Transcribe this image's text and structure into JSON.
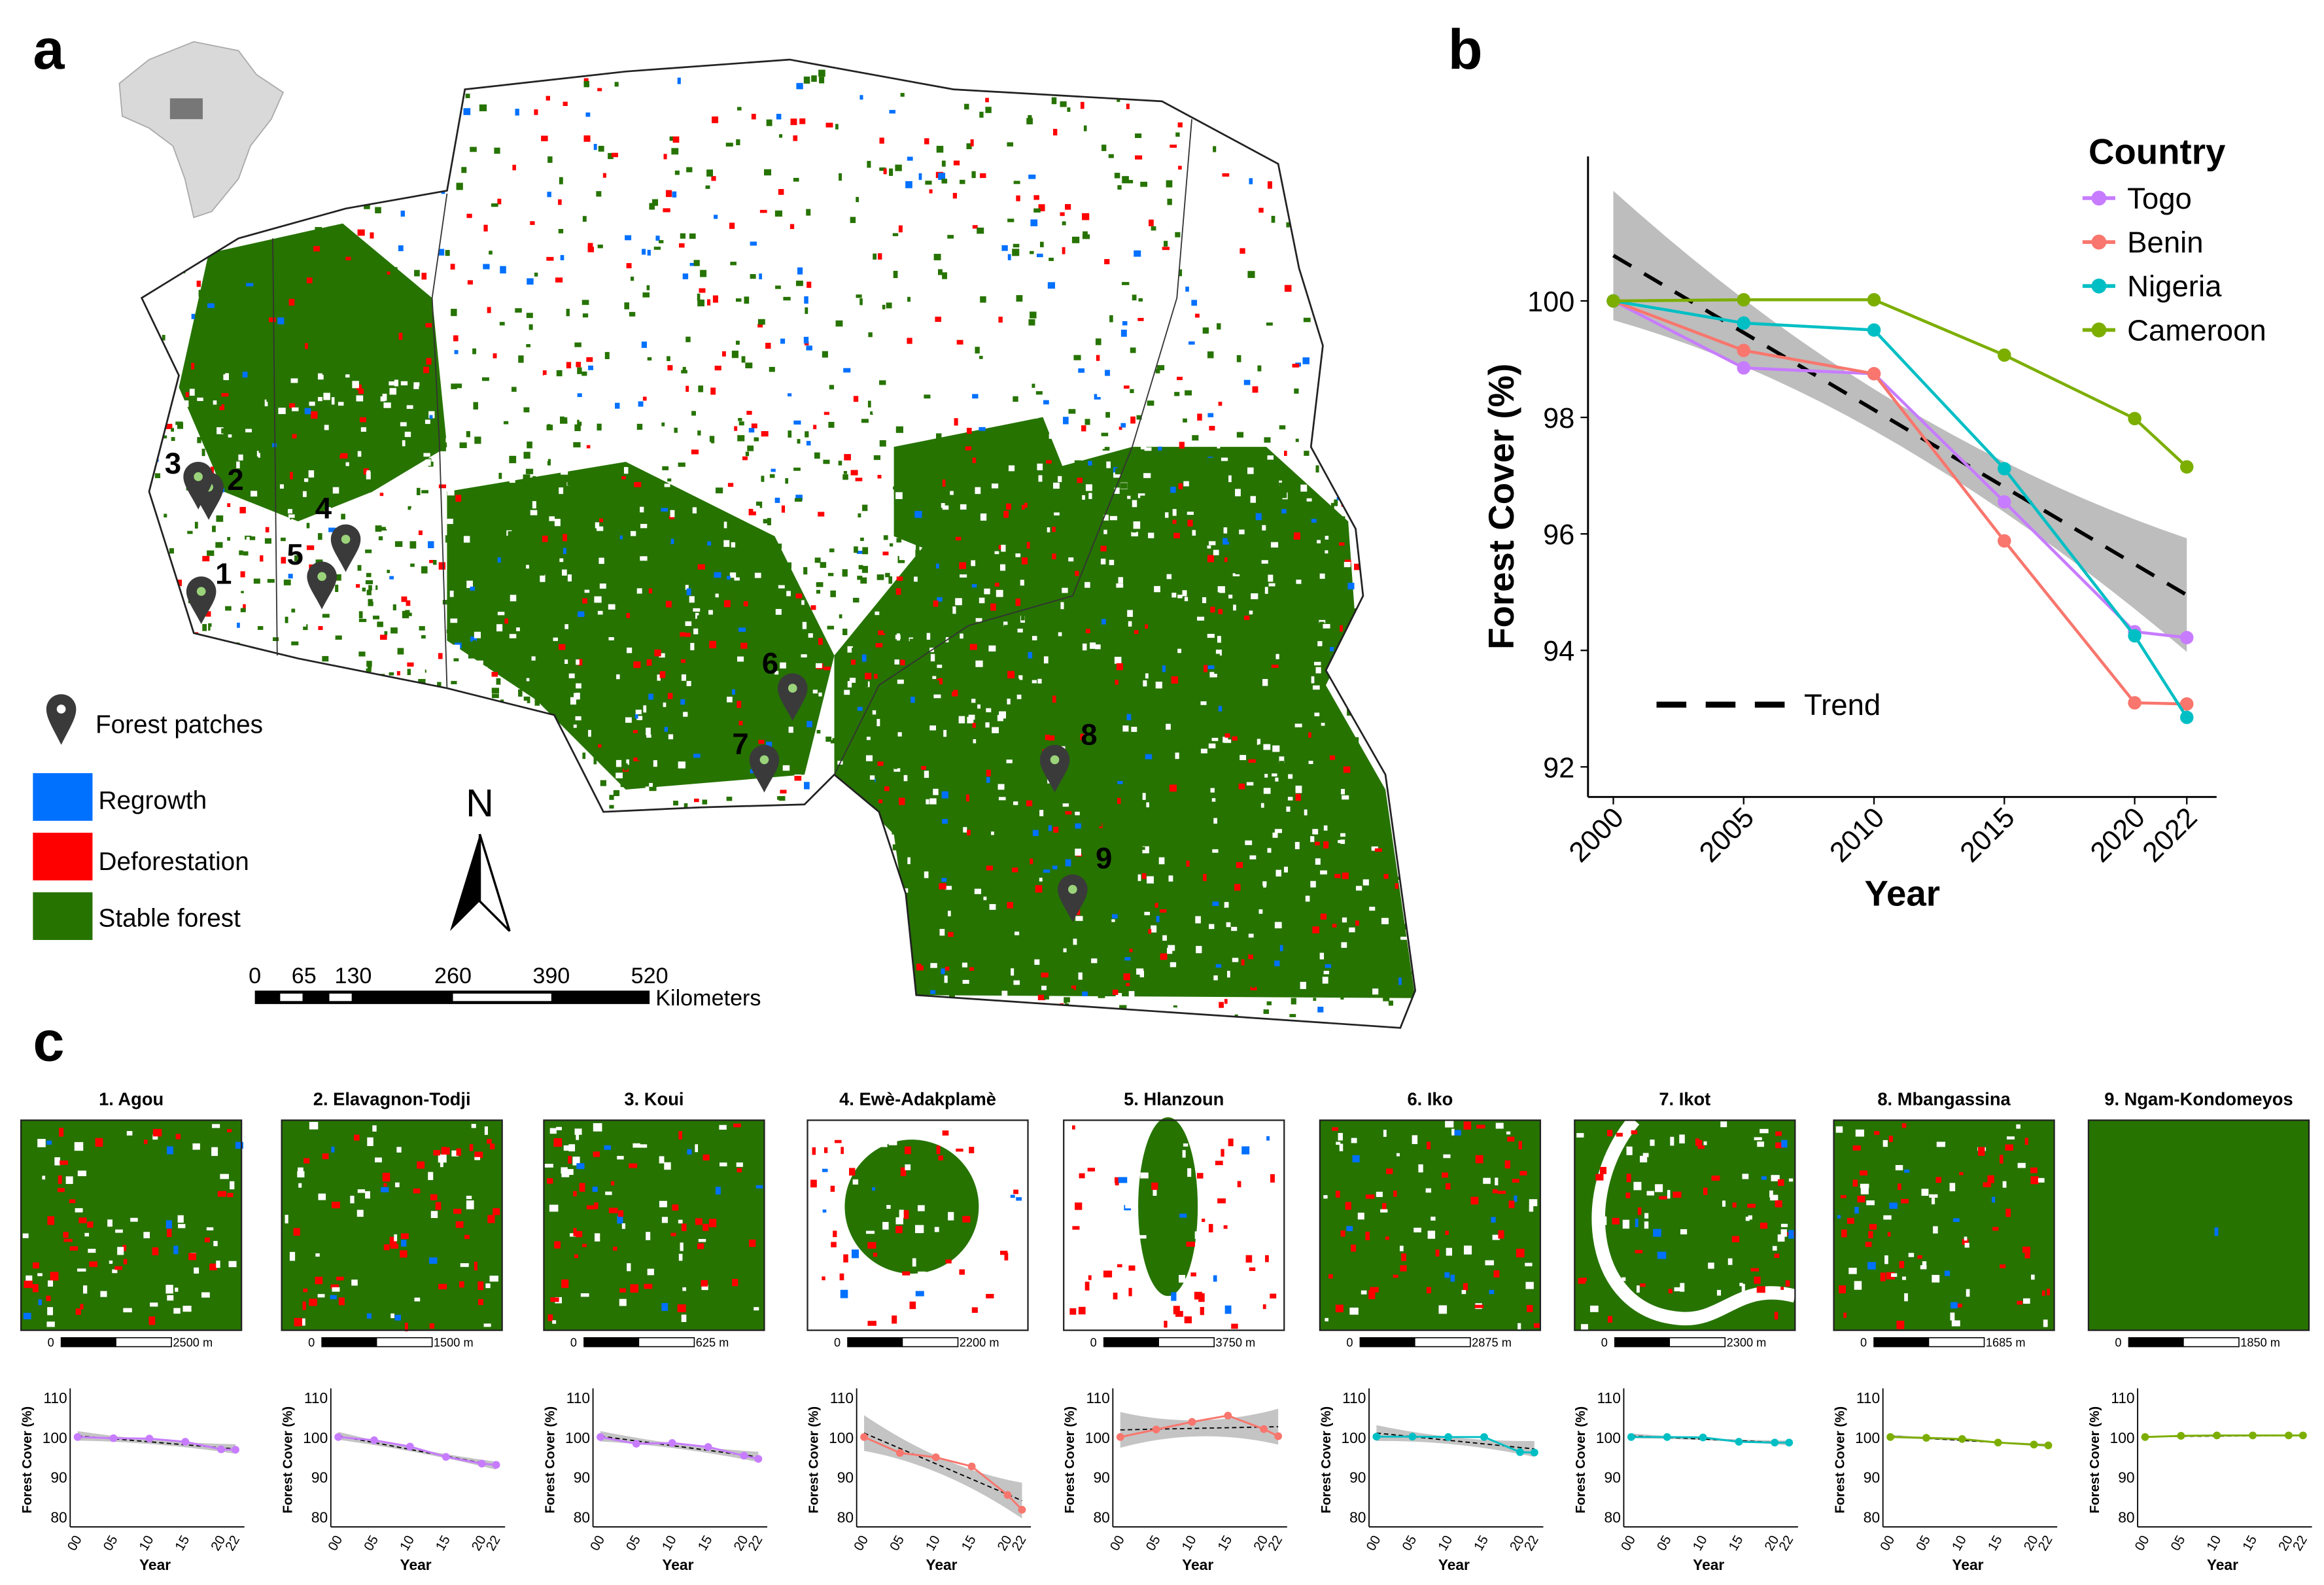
{
  "panel_labels": {
    "a": "a",
    "b": "b",
    "c": "c"
  },
  "map": {
    "legend": {
      "marker": "Forest patches",
      "regrowth": "Regrowth",
      "deforestation": "Deforestation",
      "stable": "Stable forest"
    },
    "colors": {
      "regrowth": "#0070FF",
      "deforestation": "#FF0000",
      "stable": "#267300",
      "marker": "#3a3a3a"
    },
    "north": "N",
    "scale_ticks": [
      "0",
      "65",
      "130",
      "260",
      "390",
      "520"
    ],
    "scale_unit": "Kilometers",
    "markers": [
      "1",
      "2",
      "3",
      "4",
      "5",
      "6",
      "7",
      "8",
      "9"
    ]
  },
  "chart_data": [
    {
      "type": "line",
      "panel": "b",
      "title": "",
      "xlabel": "Year",
      "ylabel": "Forest Cover (%)",
      "x": [
        2000,
        2005,
        2010,
        2015,
        2020,
        2022
      ],
      "x_tick_labels": [
        "2000",
        "2005",
        "2010",
        "2015",
        "2020",
        "2022"
      ],
      "y_ticks": [
        92,
        94,
        96,
        98,
        100
      ],
      "ylim": [
        91.5,
        102.5
      ],
      "legend_title": "Country",
      "legend_position": "top-right",
      "series": [
        {
          "name": "Togo",
          "color": "#C77CFF",
          "values": [
            100,
            98.85,
            98.75,
            96.55,
            94.32,
            94.22
          ]
        },
        {
          "name": "Benin",
          "color": "#F8766D",
          "values": [
            100,
            99.15,
            98.75,
            95.88,
            93.1,
            93.08
          ]
        },
        {
          "name": "Nigeria",
          "color": "#00BFC4",
          "values": [
            100,
            99.62,
            99.5,
            97.12,
            94.25,
            92.85
          ]
        },
        {
          "name": "Cameroon",
          "color": "#7CAE00",
          "values": [
            100,
            100.02,
            100.02,
            99.07,
            97.98,
            97.15
          ]
        }
      ],
      "trend": {
        "name": "Trend",
        "start": 100.78,
        "end": 94.95,
        "ci_start": [
          99.68,
          101.9
        ],
        "ci_end": [
          93.85,
          95.8
        ]
      }
    },
    {
      "type": "line",
      "title": "1. Agou",
      "scale_zero": "0",
      "scale_label": "2500 m",
      "color": "#C77CFF",
      "xlabel": "Year",
      "ylabel": "Forest Cover (%)",
      "x": [
        0,
        5,
        10,
        15,
        20,
        22
      ],
      "x_tick_labels": [
        "00",
        "05",
        "10",
        "15",
        "20",
        "22"
      ],
      "y_ticks": [
        80,
        90,
        100,
        110
      ],
      "ylim": [
        79,
        111
      ],
      "values": [
        100,
        99.7,
        99.6,
        98.8,
        96.9,
        96.8
      ],
      "trend": [
        100.3,
        97.0
      ],
      "ci": 1.2
    },
    {
      "type": "line",
      "title": "2. Elavagnon-Todji",
      "scale_zero": "0",
      "scale_label": "1500 m",
      "color": "#C77CFF",
      "xlabel": "Year",
      "ylabel": "Forest Cover (%)",
      "x": [
        0,
        5,
        10,
        15,
        20,
        22
      ],
      "x_tick_labels": [
        "00",
        "05",
        "10",
        "15",
        "20",
        "22"
      ],
      "y_ticks": [
        80,
        90,
        100,
        110
      ],
      "ylim": [
        79,
        111
      ],
      "values": [
        100,
        99.2,
        97.6,
        95.0,
        93.3,
        93.0
      ],
      "trend": [
        100.3,
        92.8
      ],
      "ci": 1.0
    },
    {
      "type": "line",
      "title": "3. Koui",
      "scale_zero": "0",
      "scale_label": "625 m",
      "color": "#C77CFF",
      "xlabel": "Year",
      "ylabel": "Forest Cover (%)",
      "x": [
        0,
        5,
        10,
        15,
        20,
        22
      ],
      "x_tick_labels": [
        "00",
        "05",
        "10",
        "15",
        "20",
        "22"
      ],
      "y_ticks": [
        80,
        90,
        100,
        110
      ],
      "ylim": [
        79,
        111
      ],
      "values": [
        100,
        98.3,
        98.5,
        97.5,
        95.3,
        94.5
      ],
      "trend": [
        100.2,
        95.0
      ],
      "ci": 1.3
    },
    {
      "type": "line",
      "title": "4. Ewè-Adakplamè",
      "scale_zero": "0",
      "scale_label": "2200 m",
      "color": "#F8766D",
      "xlabel": "Year",
      "ylabel": "Forest Cover (%)",
      "x": [
        0,
        5,
        10,
        15,
        20,
        22
      ],
      "x_tick_labels": [
        "00",
        "05",
        "10",
        "15",
        "20",
        "22"
      ],
      "y_ticks": [
        80,
        90,
        100,
        110
      ],
      "ylim": [
        79,
        111
      ],
      "values": [
        100,
        96.0,
        94.9,
        92.6,
        85.4,
        81.7
      ],
      "trend": [
        101.0,
        84.0
      ],
      "ci": 4.5
    },
    {
      "type": "line",
      "title": "5. Hlanzoun",
      "scale_zero": "0",
      "scale_label": "3750 m",
      "color": "#F8766D",
      "xlabel": "Year",
      "ylabel": "Forest Cover (%)",
      "x": [
        0,
        5,
        10,
        15,
        20,
        22
      ],
      "x_tick_labels": [
        "00",
        "05",
        "10",
        "15",
        "20",
        "22"
      ],
      "y_ticks": [
        80,
        90,
        100,
        110
      ],
      "ylim": [
        79,
        111
      ],
      "values": [
        100,
        101.9,
        103.8,
        105.4,
        102.0,
        100.2
      ],
      "trend": [
        101.8,
        102.6
      ],
      "ci": 4.5
    },
    {
      "type": "line",
      "title": "6. Iko",
      "scale_zero": "0",
      "scale_label": "2875 m",
      "color": "#00BFC4",
      "xlabel": "Year",
      "ylabel": "Forest Cover (%)",
      "x": [
        0,
        5,
        10,
        15,
        20,
        22
      ],
      "x_tick_labels": [
        "00",
        "05",
        "10",
        "15",
        "20",
        "22"
      ],
      "y_ticks": [
        80,
        90,
        100,
        110
      ],
      "ylim": [
        79,
        111
      ],
      "values": [
        100.1,
        100.1,
        100,
        100,
        96.2,
        96.1
      ],
      "trend": [
        101.0,
        97.0
      ],
      "ci": 2.0
    },
    {
      "type": "line",
      "title": "7. Ikot",
      "scale_zero": "0",
      "scale_label": "2300 m",
      "color": "#00BFC4",
      "xlabel": "Year",
      "ylabel": "Forest Cover (%)",
      "x": [
        0,
        5,
        10,
        15,
        20,
        22
      ],
      "x_tick_labels": [
        "00",
        "05",
        "10",
        "15",
        "20",
        "22"
      ],
      "y_ticks": [
        80,
        90,
        100,
        110
      ],
      "ylim": [
        79,
        111
      ],
      "values": [
        100,
        100,
        99.9,
        98.8,
        98.6,
        98.6
      ],
      "trend": [
        100.3,
        98.5
      ],
      "ci": 0.6
    },
    {
      "type": "line",
      "title": "8. Mbangassina",
      "scale_zero": "0",
      "scale_label": "1685 m",
      "color": "#7CAE00",
      "xlabel": "Year",
      "ylabel": "Forest Cover (%)",
      "x": [
        0,
        5,
        10,
        15,
        20,
        22
      ],
      "x_tick_labels": [
        "00",
        "05",
        "10",
        "15",
        "20",
        "22"
      ],
      "y_ticks": [
        80,
        90,
        100,
        110
      ],
      "ylim": [
        79,
        111
      ],
      "values": [
        100,
        99.8,
        99.5,
        98.6,
        98.1,
        97.9
      ],
      "trend": [
        100.2,
        97.9
      ],
      "ci": 0.4
    },
    {
      "type": "line",
      "title": "9. Ngam-Kondomeyos",
      "scale_zero": "0",
      "scale_label": "1850 m",
      "color": "#7CAE00",
      "xlabel": "Year",
      "ylabel": "Forest Cover (%)",
      "x": [
        0,
        5,
        10,
        15,
        20,
        22
      ],
      "x_tick_labels": [
        "00",
        "05",
        "10",
        "15",
        "20",
        "22"
      ],
      "y_ticks": [
        80,
        90,
        100,
        110
      ],
      "ylim": [
        79,
        111
      ],
      "values": [
        100,
        100.3,
        100.4,
        100.4,
        100.4,
        100.4
      ],
      "trend": [
        100.1,
        100.4
      ],
      "ci": 0.2
    }
  ]
}
